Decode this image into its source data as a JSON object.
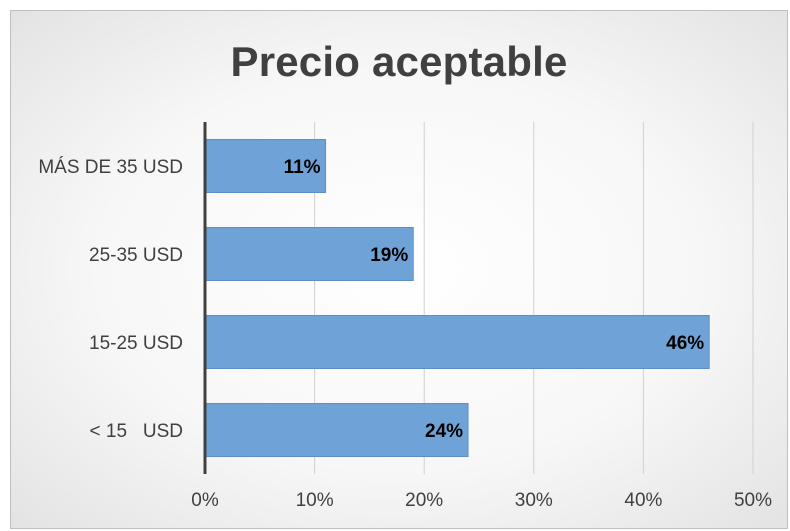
{
  "chart_data": {
    "type": "bar",
    "orientation": "horizontal",
    "title": "Precio aceptable",
    "categories": [
      "MÁS DE 35 USD",
      "25-35 USD",
      "15-25 USD",
      "< 15   USD"
    ],
    "values": [
      11,
      19,
      46,
      24
    ],
    "data_labels": [
      "11%",
      "19%",
      "46%",
      "24%"
    ],
    "xlim": [
      0,
      50
    ],
    "x_ticks": [
      "0%",
      "10%",
      "20%",
      "30%",
      "40%",
      "50%"
    ],
    "grid": true,
    "bar_color": "#6fa3d8",
    "bar_edge_color": "#5b8fc7"
  }
}
